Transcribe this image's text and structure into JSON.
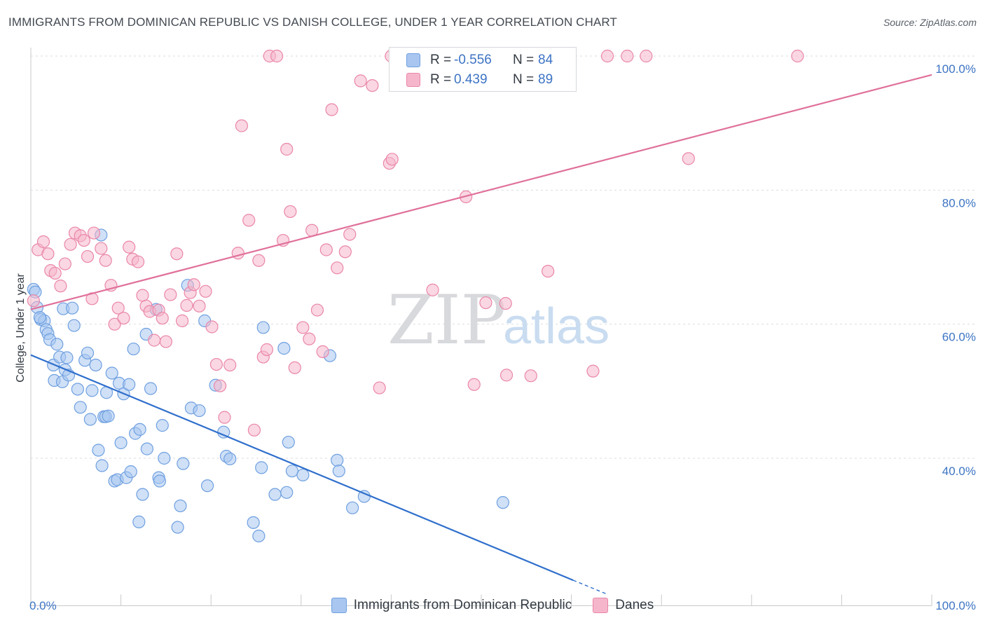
{
  "header": {
    "title": "IMMIGRANTS FROM DOMINICAN REPUBLIC VS DANISH COLLEGE, UNDER 1 YEAR CORRELATION CHART",
    "source": "Source: ZipAtlas.com"
  },
  "watermark": {
    "zip": "ZIP",
    "atlas": "atlas"
  },
  "legend": {
    "rows": [
      {
        "r_label": "R =",
        "r_value": "-0.556",
        "n_label": "N =",
        "n_value": "84",
        "color": "#a8c6f0"
      },
      {
        "r_label": "R =",
        "r_value": "0.439",
        "n_label": "N =",
        "n_value": "89",
        "color": "#f5b6cb"
      }
    ]
  },
  "bottom_legend": [
    {
      "label": "Immigrants from Dominican Republic",
      "color": "#a8c6f0"
    },
    {
      "label": "Danes",
      "color": "#f5b6cb"
    }
  ],
  "chart_data": {
    "type": "scatter",
    "ylabel": "College, Under 1 year",
    "x_range": [
      0,
      100
    ],
    "y_range": [
      18,
      102
    ],
    "x_tick_labels": [
      {
        "value": 0,
        "label": "0.0%"
      },
      {
        "value": 100,
        "label": "100.0%"
      }
    ],
    "y_tick_labels": [
      {
        "value": 40,
        "label": "40.0%"
      },
      {
        "value": 60,
        "label": "60.0%"
      },
      {
        "value": 80,
        "label": "80.0%"
      },
      {
        "value": 100,
        "label": "100.0%"
      }
    ],
    "grid": true,
    "series": [
      {
        "name": "Immigrants from Dominican Republic",
        "color": "#6fa0e0",
        "fill": "#a8c6f0",
        "trend": {
          "x1": 0,
          "y1": 55.4,
          "x2": 60.2,
          "y2": 21.8,
          "dash_to_x": 64,
          "dash_to_y": 19.7
        },
        "points": [
          [
            0.3,
            65.2
          ],
          [
            0.5,
            64.8
          ],
          [
            0.7,
            62.5
          ],
          [
            1.1,
            60.7
          ],
          [
            1.5,
            60.5
          ],
          [
            1.7,
            59.2
          ],
          [
            1.9,
            58.6
          ],
          [
            2.1,
            57.7
          ],
          [
            2.5,
            53.9
          ],
          [
            2.6,
            51.6
          ],
          [
            2.9,
            57.0
          ],
          [
            3.2,
            55.1
          ],
          [
            3.5,
            51.4
          ],
          [
            3.6,
            62.3
          ],
          [
            3.8,
            53.2
          ],
          [
            4.0,
            55.0
          ],
          [
            4.2,
            52.4
          ],
          [
            4.6,
            62.4
          ],
          [
            4.8,
            59.8
          ],
          [
            5.2,
            50.3
          ],
          [
            5.5,
            47.6
          ],
          [
            6.0,
            54.6
          ],
          [
            6.3,
            55.7
          ],
          [
            6.6,
            45.8
          ],
          [
            6.8,
            50.1
          ],
          [
            7.2,
            53.9
          ],
          [
            7.5,
            41.2
          ],
          [
            7.8,
            73.3
          ],
          [
            7.9,
            38.9
          ],
          [
            8.1,
            46.2
          ],
          [
            8.3,
            46.2
          ],
          [
            8.4,
            49.8
          ],
          [
            8.6,
            46.3
          ],
          [
            9.0,
            52.7
          ],
          [
            9.3,
            36.6
          ],
          [
            9.6,
            36.8
          ],
          [
            9.8,
            51.2
          ],
          [
            10.0,
            42.3
          ],
          [
            10.3,
            49.6
          ],
          [
            10.6,
            37.1
          ],
          [
            10.9,
            51.0
          ],
          [
            11.1,
            38.0
          ],
          [
            11.4,
            56.3
          ],
          [
            11.6,
            43.7
          ],
          [
            12.0,
            30.5
          ],
          [
            12.1,
            44.3
          ],
          [
            12.4,
            34.6
          ],
          [
            12.8,
            58.5
          ],
          [
            12.9,
            41.4
          ],
          [
            13.3,
            50.4
          ],
          [
            13.9,
            62.2
          ],
          [
            14.2,
            37.1
          ],
          [
            14.3,
            36.6
          ],
          [
            14.6,
            44.9
          ],
          [
            14.8,
            40.0
          ],
          [
            16.3,
            29.7
          ],
          [
            16.6,
            32.9
          ],
          [
            16.9,
            39.2
          ],
          [
            17.4,
            65.8
          ],
          [
            17.8,
            47.5
          ],
          [
            18.7,
            47.1
          ],
          [
            19.3,
            60.5
          ],
          [
            19.6,
            35.9
          ],
          [
            20.5,
            50.9
          ],
          [
            21.4,
            43.9
          ],
          [
            21.7,
            40.3
          ],
          [
            22.1,
            39.9
          ],
          [
            24.7,
            30.4
          ],
          [
            25.3,
            28.4
          ],
          [
            25.6,
            38.6
          ],
          [
            25.8,
            59.5
          ],
          [
            27.1,
            34.6
          ],
          [
            28.1,
            56.4
          ],
          [
            28.4,
            34.9
          ],
          [
            28.6,
            42.4
          ],
          [
            29.0,
            38.1
          ],
          [
            30.2,
            37.5
          ],
          [
            33.2,
            55.3
          ],
          [
            34.0,
            39.7
          ],
          [
            34.2,
            38.1
          ],
          [
            35.7,
            32.6
          ],
          [
            37.0,
            34.3
          ],
          [
            52.4,
            33.4
          ],
          [
            1.0,
            61.0
          ]
        ]
      },
      {
        "name": "Danes",
        "color": "#ea86a8",
        "fill": "#f5b6cb",
        "trend": {
          "x1": 0,
          "y1": 62.2,
          "x2": 100,
          "y2": 97.2
        },
        "points": [
          [
            0.3,
            63.5
          ],
          [
            0.8,
            71.1
          ],
          [
            1.4,
            72.3
          ],
          [
            1.9,
            70.5
          ],
          [
            2.2,
            68.0
          ],
          [
            2.7,
            67.6
          ],
          [
            3.3,
            65.7
          ],
          [
            3.8,
            69.0
          ],
          [
            4.4,
            71.9
          ],
          [
            4.9,
            73.6
          ],
          [
            5.5,
            73.2
          ],
          [
            5.9,
            72.5
          ],
          [
            6.3,
            70.1
          ],
          [
            6.8,
            63.8
          ],
          [
            7.0,
            73.6
          ],
          [
            7.8,
            71.3
          ],
          [
            8.3,
            69.5
          ],
          [
            8.9,
            65.8
          ],
          [
            9.3,
            60.0
          ],
          [
            9.7,
            62.4
          ],
          [
            10.3,
            60.9
          ],
          [
            10.9,
            71.5
          ],
          [
            11.3,
            69.7
          ],
          [
            11.9,
            69.3
          ],
          [
            12.4,
            64.3
          ],
          [
            12.8,
            62.7
          ],
          [
            13.2,
            61.9
          ],
          [
            13.7,
            57.6
          ],
          [
            14.2,
            62.1
          ],
          [
            14.6,
            60.9
          ],
          [
            15.0,
            57.4
          ],
          [
            15.5,
            64.4
          ],
          [
            16.2,
            70.5
          ],
          [
            16.8,
            60.5
          ],
          [
            17.3,
            62.8
          ],
          [
            17.7,
            64.7
          ],
          [
            18.1,
            65.9
          ],
          [
            18.7,
            62.7
          ],
          [
            19.4,
            64.9
          ],
          [
            20.1,
            59.6
          ],
          [
            20.6,
            54.0
          ],
          [
            21.0,
            50.8
          ],
          [
            21.5,
            46.1
          ],
          [
            22.1,
            53.9
          ],
          [
            23.0,
            70.6
          ],
          [
            23.4,
            89.6
          ],
          [
            24.2,
            75.5
          ],
          [
            24.8,
            44.2
          ],
          [
            25.3,
            69.5
          ],
          [
            25.8,
            55.1
          ],
          [
            26.2,
            56.2
          ],
          [
            26.5,
            100.0
          ],
          [
            27.3,
            100.0
          ],
          [
            28.0,
            72.5
          ],
          [
            28.4,
            86.1
          ],
          [
            28.8,
            76.8
          ],
          [
            29.3,
            53.5
          ],
          [
            30.2,
            59.5
          ],
          [
            30.9,
            57.8
          ],
          [
            31.2,
            74.0
          ],
          [
            31.8,
            62.1
          ],
          [
            32.4,
            55.9
          ],
          [
            32.8,
            71.1
          ],
          [
            33.4,
            92.0
          ],
          [
            34.0,
            68.4
          ],
          [
            34.9,
            70.8
          ],
          [
            35.4,
            73.4
          ],
          [
            36.6,
            96.3
          ],
          [
            37.9,
            95.6
          ],
          [
            38.7,
            50.5
          ],
          [
            39.8,
            84.0
          ],
          [
            40.1,
            84.6
          ],
          [
            41.6,
            100.0
          ],
          [
            44.6,
            65.1
          ],
          [
            46.2,
            100.0
          ],
          [
            48.3,
            79.0
          ],
          [
            49.2,
            51.0
          ],
          [
            52.7,
            63.1
          ],
          [
            55.5,
            52.3
          ],
          [
            57.4,
            67.9
          ],
          [
            62.4,
            53.0
          ],
          [
            64.0,
            100.0
          ],
          [
            66.2,
            100.0
          ],
          [
            68.3,
            100.0
          ],
          [
            73.0,
            84.7
          ],
          [
            85.1,
            100.0
          ],
          [
            40.0,
            100.0
          ],
          [
            50.5,
            63.2
          ],
          [
            52.8,
            52.4
          ]
        ]
      }
    ]
  }
}
